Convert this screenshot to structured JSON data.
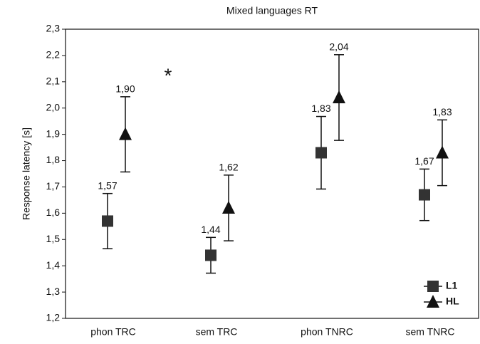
{
  "chart_data": {
    "type": "errorbar",
    "title": "Mixed languages RT",
    "ylabel": "Response latency [s]",
    "categories": [
      "phon TRC",
      "sem TRC",
      "phon TNRC",
      "sem TNRC"
    ],
    "series": [
      {
        "name": "L1",
        "marker": "square",
        "color": "#333333",
        "values": [
          1.57,
          1.44,
          1.83,
          1.67
        ],
        "value_labels": [
          "1,57",
          "1,44",
          "1,83",
          "1,67"
        ],
        "errors": [
          0.105,
          0.068,
          0.138,
          0.098
        ]
      },
      {
        "name": "HL",
        "marker": "triangle",
        "color": "#111111",
        "values": [
          1.9,
          1.62,
          2.04,
          1.83
        ],
        "value_labels": [
          "1,90",
          "1,62",
          "2,04",
          "1,83"
        ],
        "errors": [
          0.143,
          0.125,
          0.163,
          0.125
        ]
      }
    ],
    "ylim": [
      1.2,
      2.3
    ],
    "yticks": [
      {
        "value": 1.2,
        "label": "1,2"
      },
      {
        "value": 1.3,
        "label": "1,3"
      },
      {
        "value": 1.4,
        "label": "1,4"
      },
      {
        "value": 1.5,
        "label": "1,5"
      },
      {
        "value": 1.6,
        "label": "1,6"
      },
      {
        "value": 1.7,
        "label": "1,7"
      },
      {
        "value": 1.8,
        "label": "1,8"
      },
      {
        "value": 1.9,
        "label": "1,9"
      },
      {
        "value": 2.0,
        "label": "2,0"
      },
      {
        "value": 2.1,
        "label": "2,1"
      },
      {
        "value": 2.2,
        "label": "2,2"
      },
      {
        "value": 2.3,
        "label": "2,3"
      }
    ],
    "annotation": "*",
    "legend": "lower right",
    "grid": false
  }
}
